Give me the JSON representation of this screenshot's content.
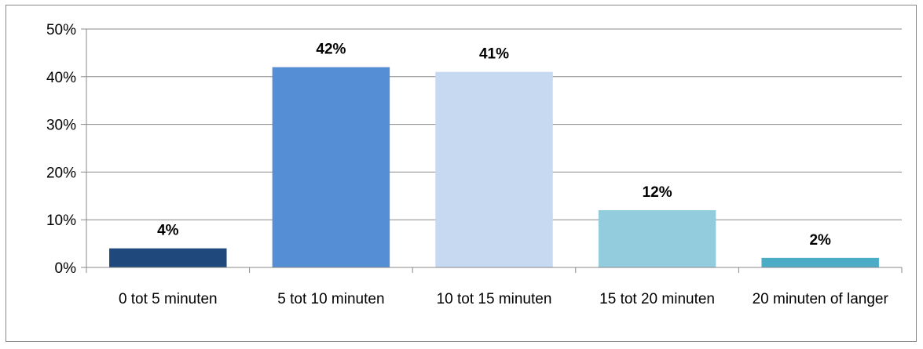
{
  "chart_data": {
    "type": "bar",
    "categories": [
      "0 tot 5 minuten",
      "5 tot 10 minuten",
      "10 tot 15 minuten",
      "15 tot 20 minuten",
      "20 minuten of langer"
    ],
    "values": [
      4,
      42,
      41,
      12,
      2
    ],
    "data_labels": [
      "4%",
      "42%",
      "41%",
      "12%",
      "2%"
    ],
    "bar_colors": [
      "#1F497D",
      "#558ED5",
      "#C6D9F1",
      "#93CDDD",
      "#4BACC6"
    ],
    "ylim": [
      0,
      50
    ],
    "y_ticks": [
      0,
      10,
      20,
      30,
      40,
      50
    ],
    "y_tick_labels": [
      "0%",
      "10%",
      "20%",
      "30%",
      "40%",
      "50%"
    ],
    "grid": true,
    "legend": false,
    "title": "",
    "xlabel": "",
    "ylabel": ""
  }
}
